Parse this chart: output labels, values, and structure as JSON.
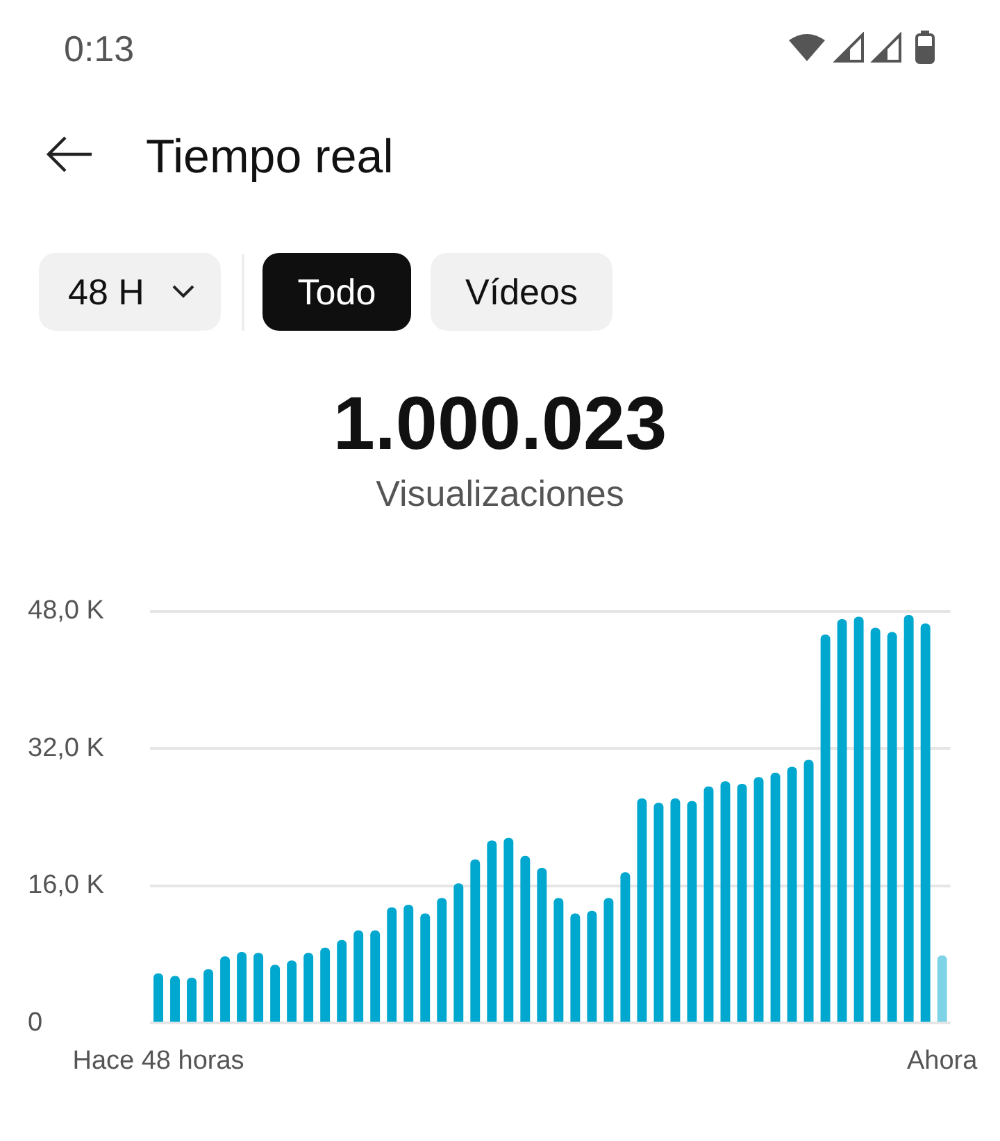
{
  "chart_data": {
    "type": "bar",
    "title": "Tiempo real",
    "annotations": [
      "0:13",
      "48 H",
      "Todo",
      "Vídeos",
      "1.000.023",
      "Visualizaciones"
    ],
    "categories": [
      "Hace 48 horas",
      null,
      null,
      null,
      null,
      null,
      null,
      null,
      null,
      null,
      null,
      null,
      null,
      null,
      null,
      null,
      null,
      null,
      null,
      null,
      null,
      null,
      null,
      null,
      null,
      null,
      null,
      null,
      null,
      null,
      null,
      null,
      null,
      null,
      null,
      null,
      null,
      null,
      null,
      null,
      null,
      null,
      null,
      null,
      null,
      null,
      null,
      "Ahora"
    ],
    "values": [
      5.8,
      5.5,
      5.3,
      6.3,
      7.8,
      8.3,
      8.2,
      6.8,
      7.3,
      8.2,
      8.8,
      9.7,
      10.8,
      10.8,
      13.5,
      13.8,
      12.8,
      14.6,
      16.3,
      19.1,
      21.3,
      21.6,
      19.5,
      18.1,
      14.6,
      12.8,
      13.1,
      14.6,
      17.6,
      26.2,
      25.7,
      26.2,
      25.9,
      27.6,
      28.2,
      27.9,
      28.7,
      29.2,
      29.9,
      30.7,
      45.3,
      47.1,
      47.4,
      46.1,
      45.6,
      47.6,
      46.6,
      7.9
    ],
    "colors": [
      "#00a8cf",
      "#00a8cf",
      "#00a8cf",
      "#00a8cf",
      "#00a8cf",
      "#00a8cf",
      "#00a8cf",
      "#00a8cf",
      "#00a8cf",
      "#00a8cf",
      "#00a8cf",
      "#00a8cf",
      "#00a8cf",
      "#00a8cf",
      "#00a8cf",
      "#00a8cf",
      "#00a8cf",
      "#00a8cf",
      "#00a8cf",
      "#00a8cf",
      "#00a8cf",
      "#00a8cf",
      "#00a8cf",
      "#00a8cf",
      "#00a8cf",
      "#00a8cf",
      "#00a8cf",
      "#00a8cf",
      "#00a8cf",
      "#00a8cf",
      "#00a8cf",
      "#00a8cf",
      "#00a8cf",
      "#00a8cf",
      "#00a8cf",
      "#00a8cf",
      "#00a8cf",
      "#00a8cf",
      "#00a8cf",
      "#00a8cf",
      "#00a8cf",
      "#00a8cf",
      "#00a8cf",
      "#00a8cf",
      "#00a8cf",
      "#00a8cf",
      "#00a8cf",
      "#7fd3e6"
    ],
    "ylim": [
      0,
      48
    ],
    "yticks": [
      0,
      {
        "value": 16,
        "label": "16,0 K"
      },
      {
        "value": 32,
        "label": "32,0 K"
      },
      {
        "value": 48,
        "label": "48,0 K"
      }
    ],
    "grid": "y",
    "legend": false
  }
}
